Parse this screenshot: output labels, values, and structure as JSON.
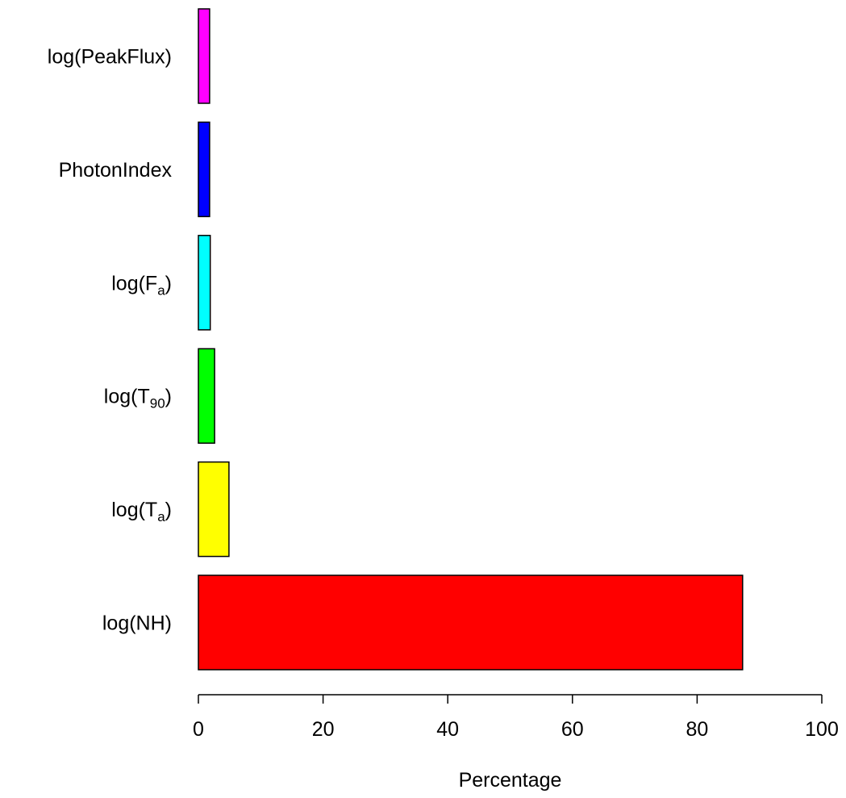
{
  "chart_data": {
    "type": "bar",
    "orientation": "horizontal",
    "title": "",
    "xlabel": "Percentage",
    "ylabel": "",
    "xlim": [
      0,
      100
    ],
    "x_ticks": [
      0,
      20,
      40,
      60,
      80,
      100
    ],
    "grid": false,
    "legend": "none",
    "categories": [
      {
        "base": "log(PeakFlux)",
        "sub": "",
        "suffix": ""
      },
      {
        "base": "PhotonIndex",
        "sub": "",
        "suffix": ""
      },
      {
        "base": "log(F",
        "sub": "a",
        "suffix": ")"
      },
      {
        "base": "log(T",
        "sub": "90",
        "suffix": ")"
      },
      {
        "base": "log(T",
        "sub": "a",
        "suffix": ")"
      },
      {
        "base": "log(NH)",
        "sub": "",
        "suffix": ""
      }
    ],
    "values": [
      1.8,
      1.8,
      1.9,
      2.6,
      4.9,
      87.3
    ],
    "colors": [
      "#ff00ff",
      "#0000ff",
      "#00ffff",
      "#00ff00",
      "#ffff00",
      "#ff0000"
    ]
  }
}
